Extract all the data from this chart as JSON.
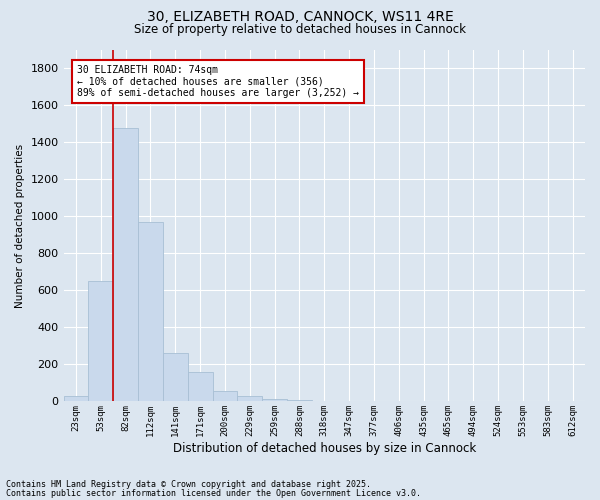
{
  "title_line1": "30, ELIZABETH ROAD, CANNOCK, WS11 4RE",
  "title_line2": "Size of property relative to detached houses in Cannock",
  "xlabel": "Distribution of detached houses by size in Cannock",
  "ylabel": "Number of detached properties",
  "categories": [
    "23sqm",
    "53sqm",
    "82sqm",
    "112sqm",
    "141sqm",
    "171sqm",
    "200sqm",
    "229sqm",
    "259sqm",
    "288sqm",
    "318sqm",
    "347sqm",
    "377sqm",
    "406sqm",
    "435sqm",
    "465sqm",
    "494sqm",
    "524sqm",
    "553sqm",
    "583sqm",
    "612sqm"
  ],
  "values": [
    30,
    650,
    1480,
    970,
    260,
    160,
    55,
    30,
    15,
    5,
    3,
    2,
    1,
    1,
    1,
    0,
    0,
    0,
    0,
    0,
    0
  ],
  "bar_color": "#c9d9ec",
  "bar_edge_color": "#a8bfd4",
  "bar_linewidth": 0.6,
  "bg_color": "#dce6f0",
  "grid_color": "#ffffff",
  "annotation_text": "30 ELIZABETH ROAD: 74sqm\n← 10% of detached houses are smaller (356)\n89% of semi-detached houses are larger (3,252) →",
  "annotation_box_color": "#ffffff",
  "annotation_box_edge_color": "#cc0000",
  "vline_color": "#cc0000",
  "footnote1": "Contains HM Land Registry data © Crown copyright and database right 2025.",
  "footnote2": "Contains public sector information licensed under the Open Government Licence v3.0.",
  "ylim": [
    0,
    1900
  ],
  "yticks": [
    0,
    200,
    400,
    600,
    800,
    1000,
    1200,
    1400,
    1600,
    1800
  ]
}
